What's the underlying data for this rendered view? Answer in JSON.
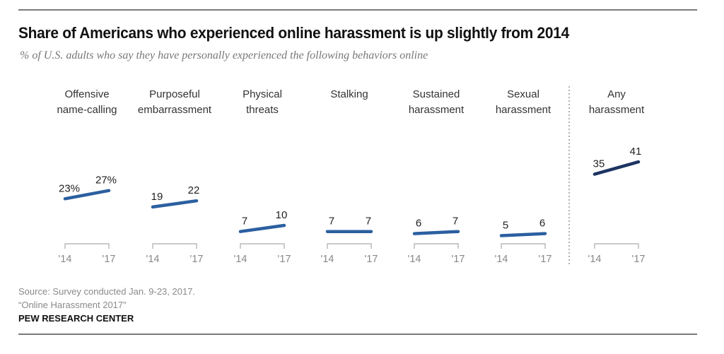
{
  "header": {
    "title": "Share of Americans who experienced online harassment is up slightly from 2014",
    "subtitle": "% of U.S. adults who say they have personally experienced the following behaviors online"
  },
  "footer": {
    "source": "Source: Survey conducted Jan. 9-23, 2017.",
    "report": "“Online Harassment 2017”",
    "brand": "PEW RESEARCH CENTER"
  },
  "colors": {
    "line": "#2b5fa0",
    "highlight_line": "#1d3461",
    "bracket": "#aaaaaa",
    "divider": "#999999"
  },
  "chart_data": {
    "type": "line",
    "title": "Share of Americans who experienced online harassment is up slightly from 2014",
    "subtitle": "% of U.S. adults who say they have personally experienced the following behaviors online",
    "x": [
      "'14",
      "'17"
    ],
    "unit_suffix_first_panel": "%",
    "grid": false,
    "series": [
      {
        "name": "Offensive name-calling",
        "label_lines": [
          "Offensive",
          "name-calling"
        ],
        "values": [
          23,
          27
        ],
        "labels": [
          "23%",
          "27%"
        ]
      },
      {
        "name": "Purposeful embarrassment",
        "label_lines": [
          "Purposeful",
          "embarrassment"
        ],
        "values": [
          19,
          22
        ],
        "labels": [
          "19",
          "22"
        ]
      },
      {
        "name": "Physical threats",
        "label_lines": [
          "Physical",
          "threats"
        ],
        "values": [
          7,
          10
        ],
        "labels": [
          "7",
          "10"
        ]
      },
      {
        "name": "Stalking",
        "label_lines": [
          "Stalking"
        ],
        "values": [
          7,
          7
        ],
        "labels": [
          "7",
          "7"
        ]
      },
      {
        "name": "Sustained harassment",
        "label_lines": [
          "Sustained",
          "harassment"
        ],
        "values": [
          6,
          7
        ],
        "labels": [
          "6",
          "7"
        ]
      },
      {
        "name": "Sexual harassment",
        "label_lines": [
          "Sexual",
          "harassment"
        ],
        "values": [
          5,
          6
        ],
        "labels": [
          "5",
          "6"
        ]
      },
      {
        "name": "Any harassment",
        "label_lines": [
          "Any",
          "harassment"
        ],
        "values": [
          35,
          41
        ],
        "labels": [
          "35",
          "41"
        ],
        "highlight": true
      }
    ]
  }
}
